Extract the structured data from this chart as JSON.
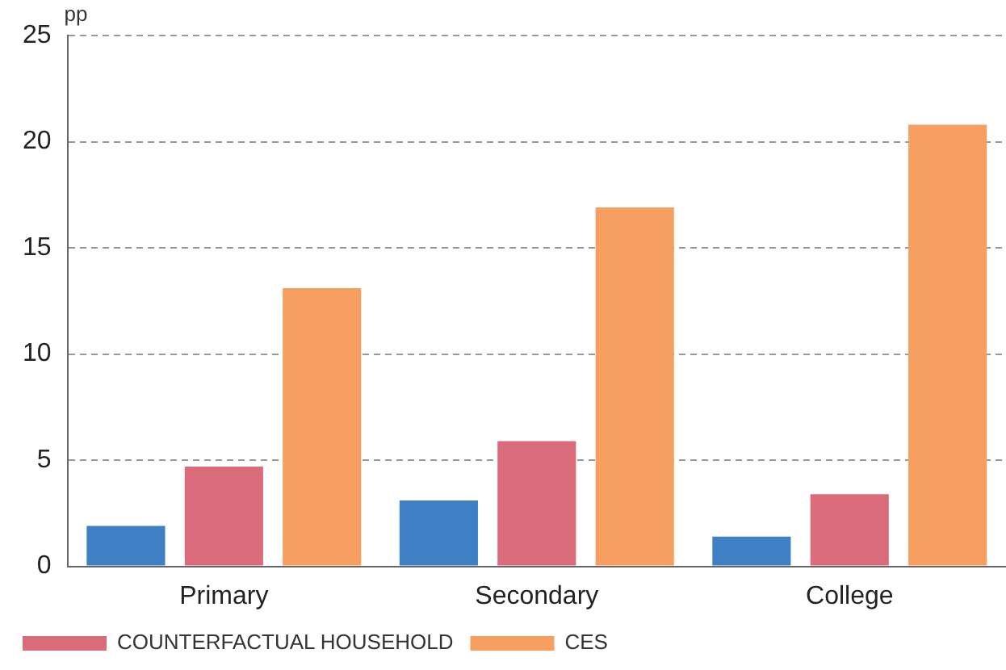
{
  "chart_data": {
    "type": "bar",
    "ylabel": "pp",
    "categories": [
      "Primary",
      "Secondary",
      "College"
    ],
    "series": [
      {
        "color": "#3f7fc4",
        "values": [
          1.9,
          3.1,
          1.4
        ]
      },
      {
        "name": "COUNTERFACTUAL HOUSEHOLD",
        "color": "#d96b7a",
        "values": [
          4.7,
          5.9,
          3.4
        ]
      },
      {
        "name": "CES",
        "color": "#f79e61",
        "values": [
          13.1,
          16.9,
          20.8
        ]
      }
    ],
    "ylim": [
      0,
      25
    ],
    "yticks": [
      0,
      5,
      10,
      15,
      20,
      25
    ],
    "grid": "y",
    "legend": "bottom"
  }
}
